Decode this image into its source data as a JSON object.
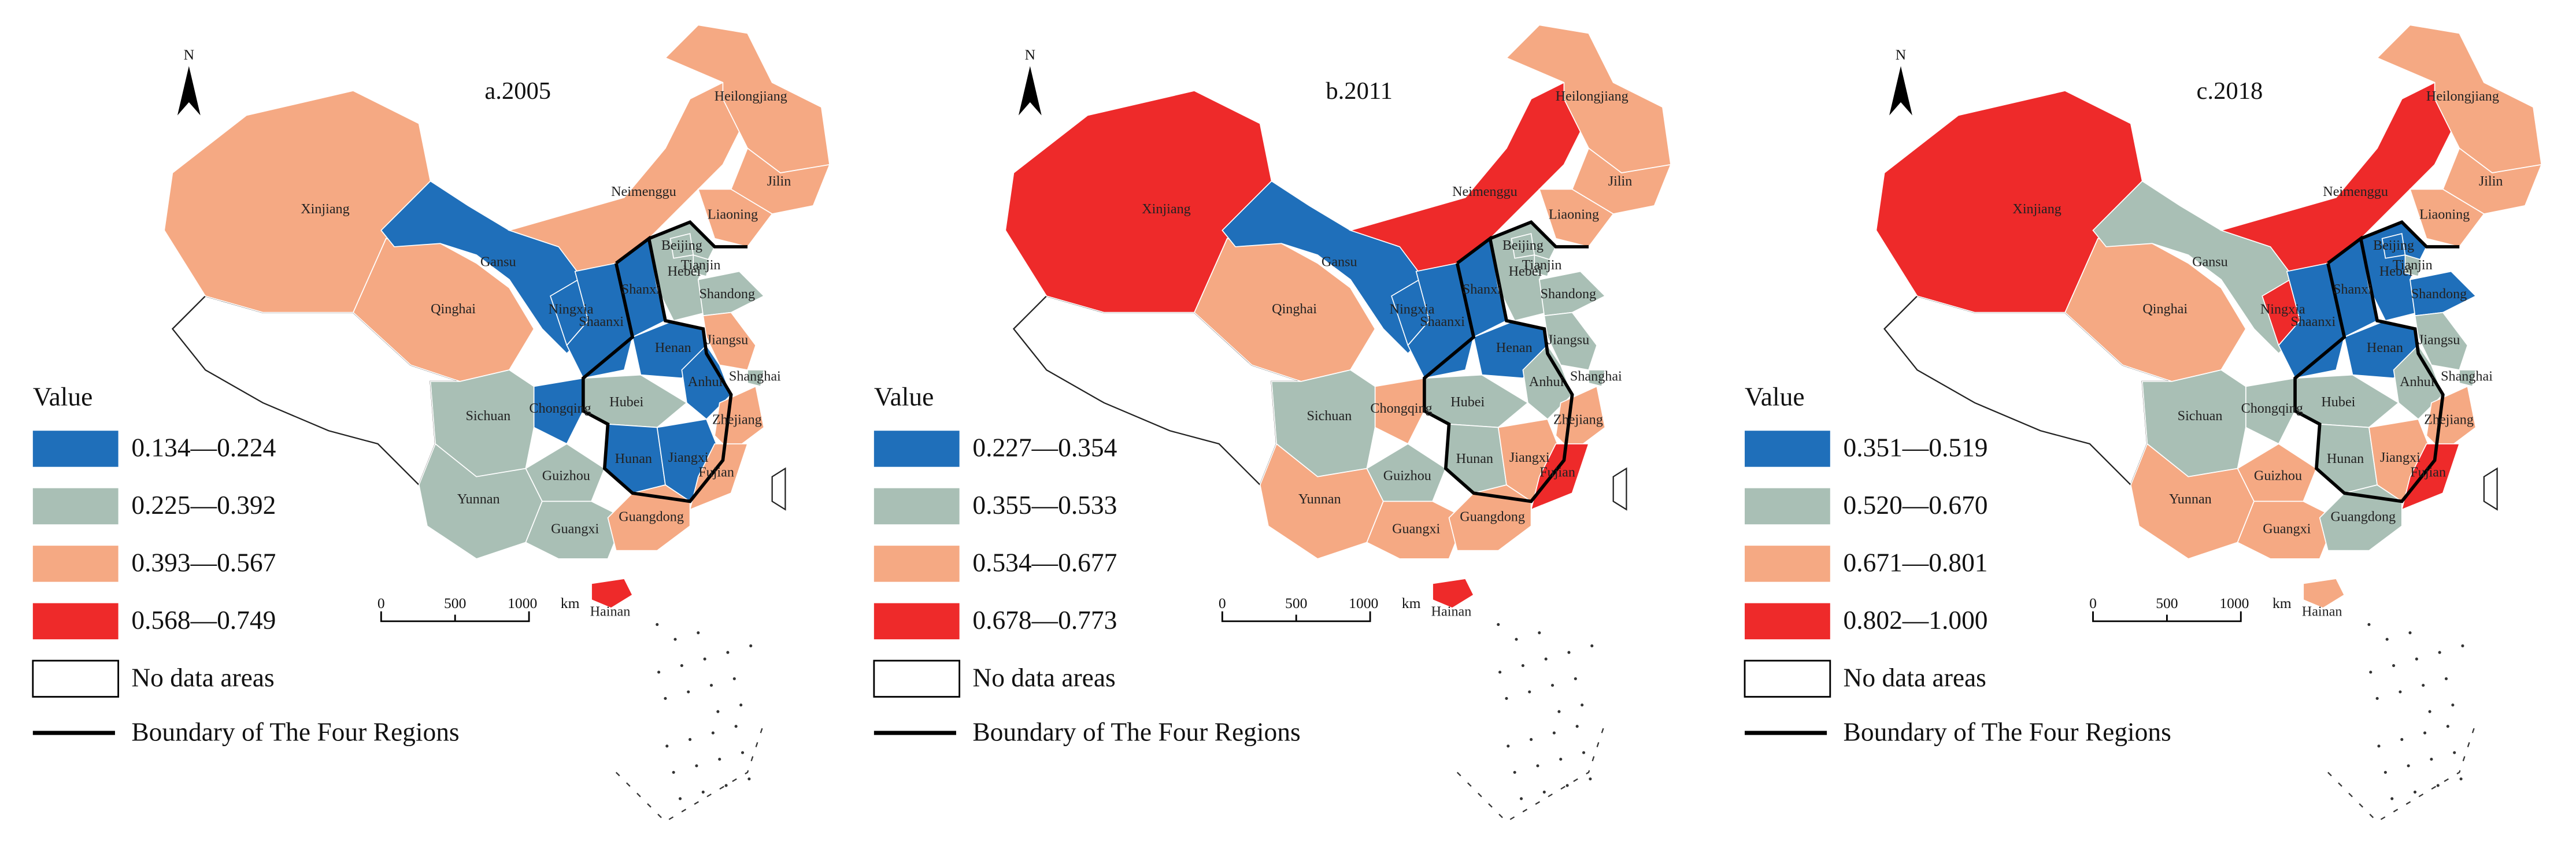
{
  "panels": [
    {
      "title": "a.2005",
      "legend_title": "Value",
      "north": "N",
      "classes": [
        {
          "label": "0.134—0.224",
          "color": "#1f6fba"
        },
        {
          "label": "0.225—0.392",
          "color": "#a9bfb5"
        },
        {
          "label": "0.393—0.567",
          "color": "#f5a983"
        },
        {
          "label": "0.568—0.749",
          "color": "#ee2a2a"
        }
      ],
      "no_data_label": "No data areas",
      "boundary_label": "Boundary of The Four Regions",
      "scale": [
        "0",
        "500",
        "1000",
        "km"
      ],
      "regions": [
        {
          "name": "Xinjiang",
          "class": 2
        },
        {
          "name": "Qinghai",
          "class": 2
        },
        {
          "name": "Gansu",
          "class": 0
        },
        {
          "name": "Neimenggu",
          "class": 2
        },
        {
          "name": "Heilongjiang",
          "class": 2
        },
        {
          "name": "Jilin",
          "class": 2
        },
        {
          "name": "Liaoning",
          "class": 2
        },
        {
          "name": "Hebei",
          "class": 1
        },
        {
          "name": "Beijing",
          "class": 1
        },
        {
          "name": "Tianjin",
          "class": 1
        },
        {
          "name": "Shandong",
          "class": 1
        },
        {
          "name": "Shanxi",
          "class": 0
        },
        {
          "name": "Ningxia",
          "class": 0
        },
        {
          "name": "Shaanxi",
          "class": 0
        },
        {
          "name": "Henan",
          "class": 0
        },
        {
          "name": "Jiangsu",
          "class": 2
        },
        {
          "name": "Anhui",
          "class": 0
        },
        {
          "name": "Shanghai",
          "class": 1
        },
        {
          "name": "Hubei",
          "class": 1
        },
        {
          "name": "Chongqing",
          "class": 0
        },
        {
          "name": "Sichuan",
          "class": 1
        },
        {
          "name": "Hunan",
          "class": 0
        },
        {
          "name": "Jiangxi",
          "class": 0
        },
        {
          "name": "Zhejiang",
          "class": 2
        },
        {
          "name": "Fujian",
          "class": 2
        },
        {
          "name": "Guizhou",
          "class": 1
        },
        {
          "name": "Yunnan",
          "class": 1
        },
        {
          "name": "Guangxi",
          "class": 1
        },
        {
          "name": "Guangdong",
          "class": 2
        },
        {
          "name": "Hainan",
          "class": 3
        }
      ]
    },
    {
      "title": "b.2011",
      "legend_title": "Value",
      "north": "N",
      "classes": [
        {
          "label": "0.227—0.354",
          "color": "#1f6fba"
        },
        {
          "label": "0.355—0.533",
          "color": "#a9bfb5"
        },
        {
          "label": "0.534—0.677",
          "color": "#f5a983"
        },
        {
          "label": "0.678—0.773",
          "color": "#ee2a2a"
        }
      ],
      "no_data_label": "No data areas",
      "boundary_label": "Boundary of The Four Regions",
      "scale": [
        "0",
        "500",
        "1000",
        "km"
      ],
      "regions": [
        {
          "name": "Xinjiang",
          "class": 3
        },
        {
          "name": "Qinghai",
          "class": 2
        },
        {
          "name": "Gansu",
          "class": 0
        },
        {
          "name": "Neimenggu",
          "class": 3
        },
        {
          "name": "Heilongjiang",
          "class": 2
        },
        {
          "name": "Jilin",
          "class": 2
        },
        {
          "name": "Liaoning",
          "class": 2
        },
        {
          "name": "Hebei",
          "class": 1
        },
        {
          "name": "Beijing",
          "class": 1
        },
        {
          "name": "Tianjin",
          "class": 1
        },
        {
          "name": "Shandong",
          "class": 1
        },
        {
          "name": "Shanxi",
          "class": 0
        },
        {
          "name": "Ningxia",
          "class": 0
        },
        {
          "name": "Shaanxi",
          "class": 0
        },
        {
          "name": "Henan",
          "class": 0
        },
        {
          "name": "Jiangsu",
          "class": 1
        },
        {
          "name": "Anhui",
          "class": 1
        },
        {
          "name": "Shanghai",
          "class": 1
        },
        {
          "name": "Hubei",
          "class": 1
        },
        {
          "name": "Chongqing",
          "class": 2
        },
        {
          "name": "Sichuan",
          "class": 1
        },
        {
          "name": "Hunan",
          "class": 1
        },
        {
          "name": "Jiangxi",
          "class": 2
        },
        {
          "name": "Zhejiang",
          "class": 2
        },
        {
          "name": "Fujian",
          "class": 3
        },
        {
          "name": "Guizhou",
          "class": 1
        },
        {
          "name": "Yunnan",
          "class": 2
        },
        {
          "name": "Guangxi",
          "class": 2
        },
        {
          "name": "Guangdong",
          "class": 2
        },
        {
          "name": "Hainan",
          "class": 3
        }
      ]
    },
    {
      "title": "c.2018",
      "legend_title": "Value",
      "north": "N",
      "classes": [
        {
          "label": "0.351—0.519",
          "color": "#1f6fba"
        },
        {
          "label": "0.520—0.670",
          "color": "#a9bfb5"
        },
        {
          "label": "0.671—0.801",
          "color": "#f5a983"
        },
        {
          "label": "0.802—1.000",
          "color": "#ee2a2a"
        }
      ],
      "no_data_label": "No data areas",
      "boundary_label": "Boundary of The Four Regions",
      "scale": [
        "0",
        "500",
        "1000",
        "km"
      ],
      "regions": [
        {
          "name": "Xinjiang",
          "class": 3
        },
        {
          "name": "Qinghai",
          "class": 2
        },
        {
          "name": "Gansu",
          "class": 1
        },
        {
          "name": "Neimenggu",
          "class": 3
        },
        {
          "name": "Heilongjiang",
          "class": 2
        },
        {
          "name": "Jilin",
          "class": 2
        },
        {
          "name": "Liaoning",
          "class": 2
        },
        {
          "name": "Hebei",
          "class": 0
        },
        {
          "name": "Beijing",
          "class": 0
        },
        {
          "name": "Tianjin",
          "class": 1
        },
        {
          "name": "Shandong",
          "class": 0
        },
        {
          "name": "Shanxi",
          "class": 0
        },
        {
          "name": "Ningxia",
          "class": 3
        },
        {
          "name": "Shaanxi",
          "class": 0
        },
        {
          "name": "Henan",
          "class": 0
        },
        {
          "name": "Jiangsu",
          "class": 1
        },
        {
          "name": "Anhui",
          "class": 1
        },
        {
          "name": "Shanghai",
          "class": 1
        },
        {
          "name": "Hubei",
          "class": 1
        },
        {
          "name": "Chongqing",
          "class": 1
        },
        {
          "name": "Sichuan",
          "class": 1
        },
        {
          "name": "Hunan",
          "class": 1
        },
        {
          "name": "Jiangxi",
          "class": 2
        },
        {
          "name": "Zhejiang",
          "class": 2
        },
        {
          "name": "Fujian",
          "class": 3
        },
        {
          "name": "Guizhou",
          "class": 2
        },
        {
          "name": "Yunnan",
          "class": 2
        },
        {
          "name": "Guangxi",
          "class": 2
        },
        {
          "name": "Guangdong",
          "class": 1
        },
        {
          "name": "Hainan",
          "class": 2
        }
      ]
    }
  ]
}
